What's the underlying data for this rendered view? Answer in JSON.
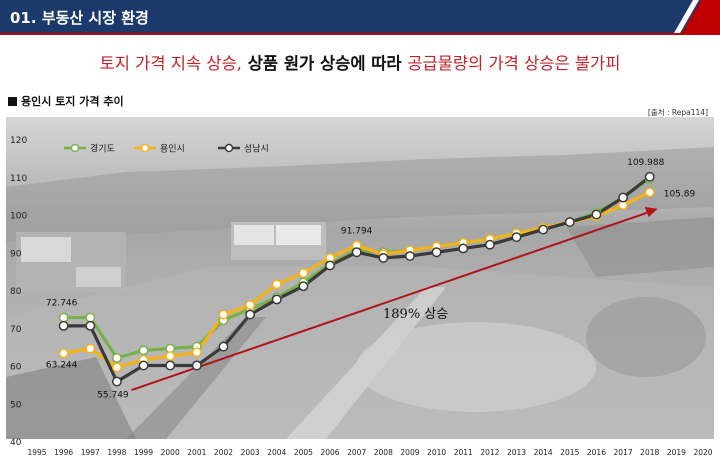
{
  "header": {
    "title": "01. 부동산 시장 환경"
  },
  "headline": {
    "part1": "토지 가격 지속 상승,",
    "part2": " 상품 원가 상승에 따라 ",
    "part3": "공급물량의 가격 상승은 불가피"
  },
  "chart_section": {
    "title": "용인시 토지 가격 추이",
    "source": "[출처 : Repa114]"
  },
  "colors": {
    "header_bg": "#1b3a6b",
    "accent_red": "#c0232a",
    "gyeonggi": "#79b04a",
    "yongin": "#f3b318",
    "seongnam": "#3a3a3a",
    "arrow": "#b01418"
  },
  "chart_data": {
    "type": "line",
    "title": "용인시 토지 가격 추이",
    "xlabel": "",
    "ylabel": "",
    "x": [
      "1995",
      "1996",
      "1997",
      "1998",
      "1999",
      "2000",
      "2001",
      "2002",
      "2003",
      "2004",
      "2005",
      "2006",
      "2007",
      "2008",
      "2009",
      "2010",
      "2011",
      "2012",
      "2013",
      "2014",
      "2015",
      "2016",
      "2017",
      "2018",
      "2019",
      "2020"
    ],
    "ylim": [
      40,
      120
    ],
    "yticks": [
      40,
      50,
      60,
      70,
      80,
      90,
      100,
      110,
      120
    ],
    "series": [
      {
        "name": "경기도",
        "color": "#79b04a",
        "values": [
          null,
          72.7,
          72.7,
          62,
          64,
          64.5,
          65,
          72,
          75,
          78,
          82,
          87,
          90.5,
          90,
          90.5,
          91.5,
          92.5,
          93.5,
          95,
          96.5,
          98,
          100.5,
          104.5,
          109.5,
          null,
          null
        ]
      },
      {
        "name": "용인시",
        "color": "#f3b318",
        "values": [
          null,
          63.244,
          64.5,
          59.5,
          61.5,
          62.5,
          63.5,
          73.5,
          76,
          81.5,
          84.5,
          88.5,
          91.794,
          89.5,
          90.5,
          91.5,
          92.5,
          93.5,
          95,
          96.5,
          98,
          99.5,
          102.5,
          105.89,
          null,
          null
        ]
      },
      {
        "name": "성남시",
        "color": "#3a3a3a",
        "values": [
          null,
          70.5,
          70.5,
          55.749,
          60,
          60,
          60,
          65,
          73.5,
          77.5,
          81,
          86.5,
          90,
          88.5,
          89,
          90,
          91,
          92,
          94,
          96,
          98,
          100,
          104.5,
          109.988,
          null,
          null
        ]
      }
    ],
    "annotations": [
      {
        "text": "72.746",
        "x": "1996",
        "y": 72.746
      },
      {
        "text": "63.244",
        "x": "1996",
        "y": 63.244
      },
      {
        "text": "55.749",
        "x": "1998",
        "y": 55.749
      },
      {
        "text": "91.794",
        "x": "2007",
        "y": 91.794
      },
      {
        "text": "109.988",
        "x": "2018",
        "y": 109.988
      },
      {
        "text": "105.89",
        "x": "2018",
        "y": 105.89
      }
    ],
    "callout": "189% 상승",
    "legend": {
      "position": "top-left"
    },
    "grid": false
  }
}
